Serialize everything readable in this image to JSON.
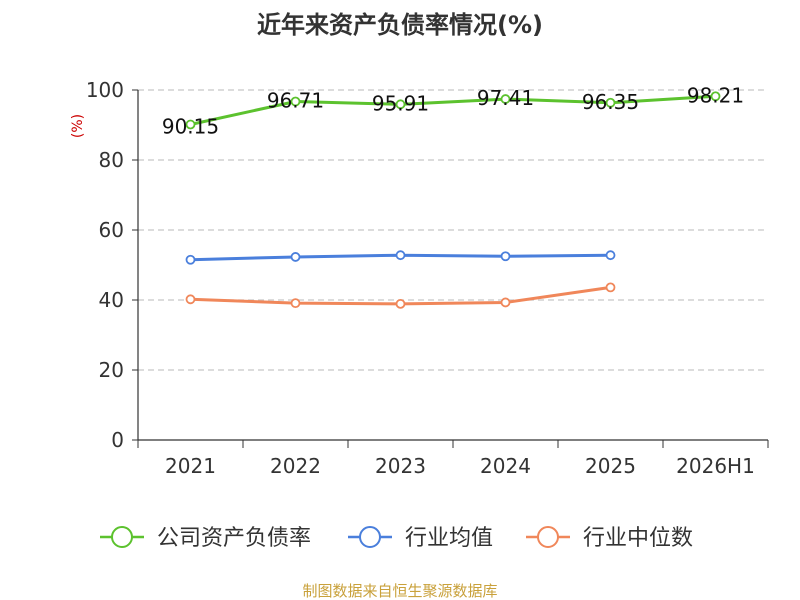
{
  "chart_data": {
    "type": "line",
    "title": "近年来资产负债率情况(%)",
    "ylabel": "(%)",
    "xlabel": "",
    "categories": [
      "2021",
      "2022",
      "2023",
      "2024",
      "2025",
      "2026H1"
    ],
    "ylim": [
      0,
      100
    ],
    "yticks": [
      0,
      20,
      40,
      60,
      80,
      100
    ],
    "grid": true,
    "legend_position": "bottom",
    "series": [
      {
        "name": "公司资产负债率",
        "color": "#5cc22e",
        "values": [
          90.15,
          96.71,
          95.91,
          97.41,
          96.35,
          98.21
        ],
        "labels": [
          "90.15",
          "96.71",
          "95.91",
          "97.41",
          "96.35",
          "98.21"
        ]
      },
      {
        "name": "行业均值",
        "color": "#4a7fdc",
        "values": [
          51.5,
          52.3,
          52.8,
          52.5,
          52.8,
          null
        ]
      },
      {
        "name": "行业中位数",
        "color": "#f0875a",
        "values": [
          40.2,
          39.1,
          38.9,
          39.3,
          43.6,
          null
        ]
      }
    ]
  },
  "source": "制图数据来自恒生聚源数据库"
}
